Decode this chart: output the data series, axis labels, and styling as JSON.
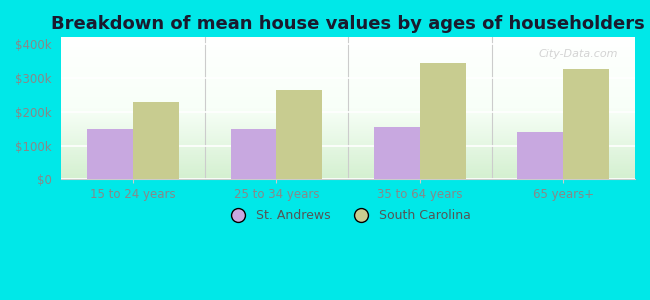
{
  "title": "Breakdown of mean house values by ages of householders",
  "categories": [
    "15 to 24 years",
    "25 to 34 years",
    "35 to 64 years",
    "65 years+"
  ],
  "st_andrews": [
    150000,
    150000,
    155000,
    140000
  ],
  "south_carolina": [
    230000,
    265000,
    345000,
    325000
  ],
  "st_andrews_color": "#c8a8e0",
  "south_carolina_color": "#c8cc90",
  "background_color": "#00e8e8",
  "yticks": [
    0,
    100000,
    200000,
    300000,
    400000
  ],
  "ytick_labels": [
    "$0",
    "$100k",
    "$200k",
    "$300k",
    "$400k"
  ],
  "ylim": [
    0,
    420000
  ],
  "title_fontsize": 13,
  "legend_labels": [
    "St. Andrews",
    "South Carolina"
  ],
  "bar_width": 0.32,
  "watermark": "City-Data.com",
  "grid_color": "#dddddd",
  "tick_label_color": "#888888"
}
